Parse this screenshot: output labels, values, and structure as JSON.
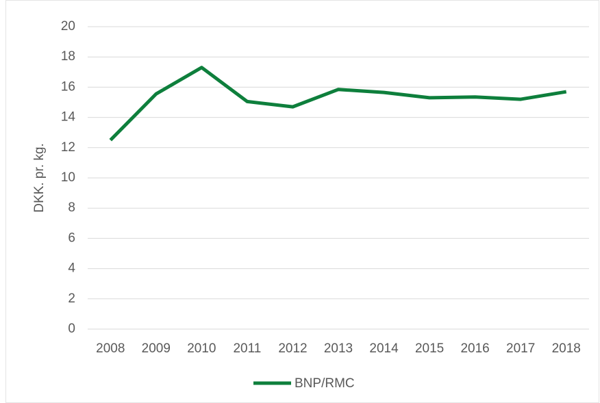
{
  "chart_data": {
    "type": "line",
    "y_label": "DKK. pr. kg.",
    "categories": [
      "2008",
      "2009",
      "2010",
      "2011",
      "2012",
      "2013",
      "2014",
      "2015",
      "2016",
      "2017",
      "2018"
    ],
    "series": [
      {
        "name": "BNP/RMC",
        "color": "#0e7f3c",
        "values": [
          12.5,
          15.55,
          17.3,
          15.05,
          14.7,
          15.85,
          15.65,
          15.3,
          15.35,
          15.2,
          15.7
        ]
      }
    ],
    "ylim": [
      0,
      20
    ],
    "yticks": [
      0,
      2,
      4,
      6,
      8,
      10,
      12,
      14,
      16,
      18,
      20
    ],
    "grid": true,
    "legend": "bottom"
  }
}
